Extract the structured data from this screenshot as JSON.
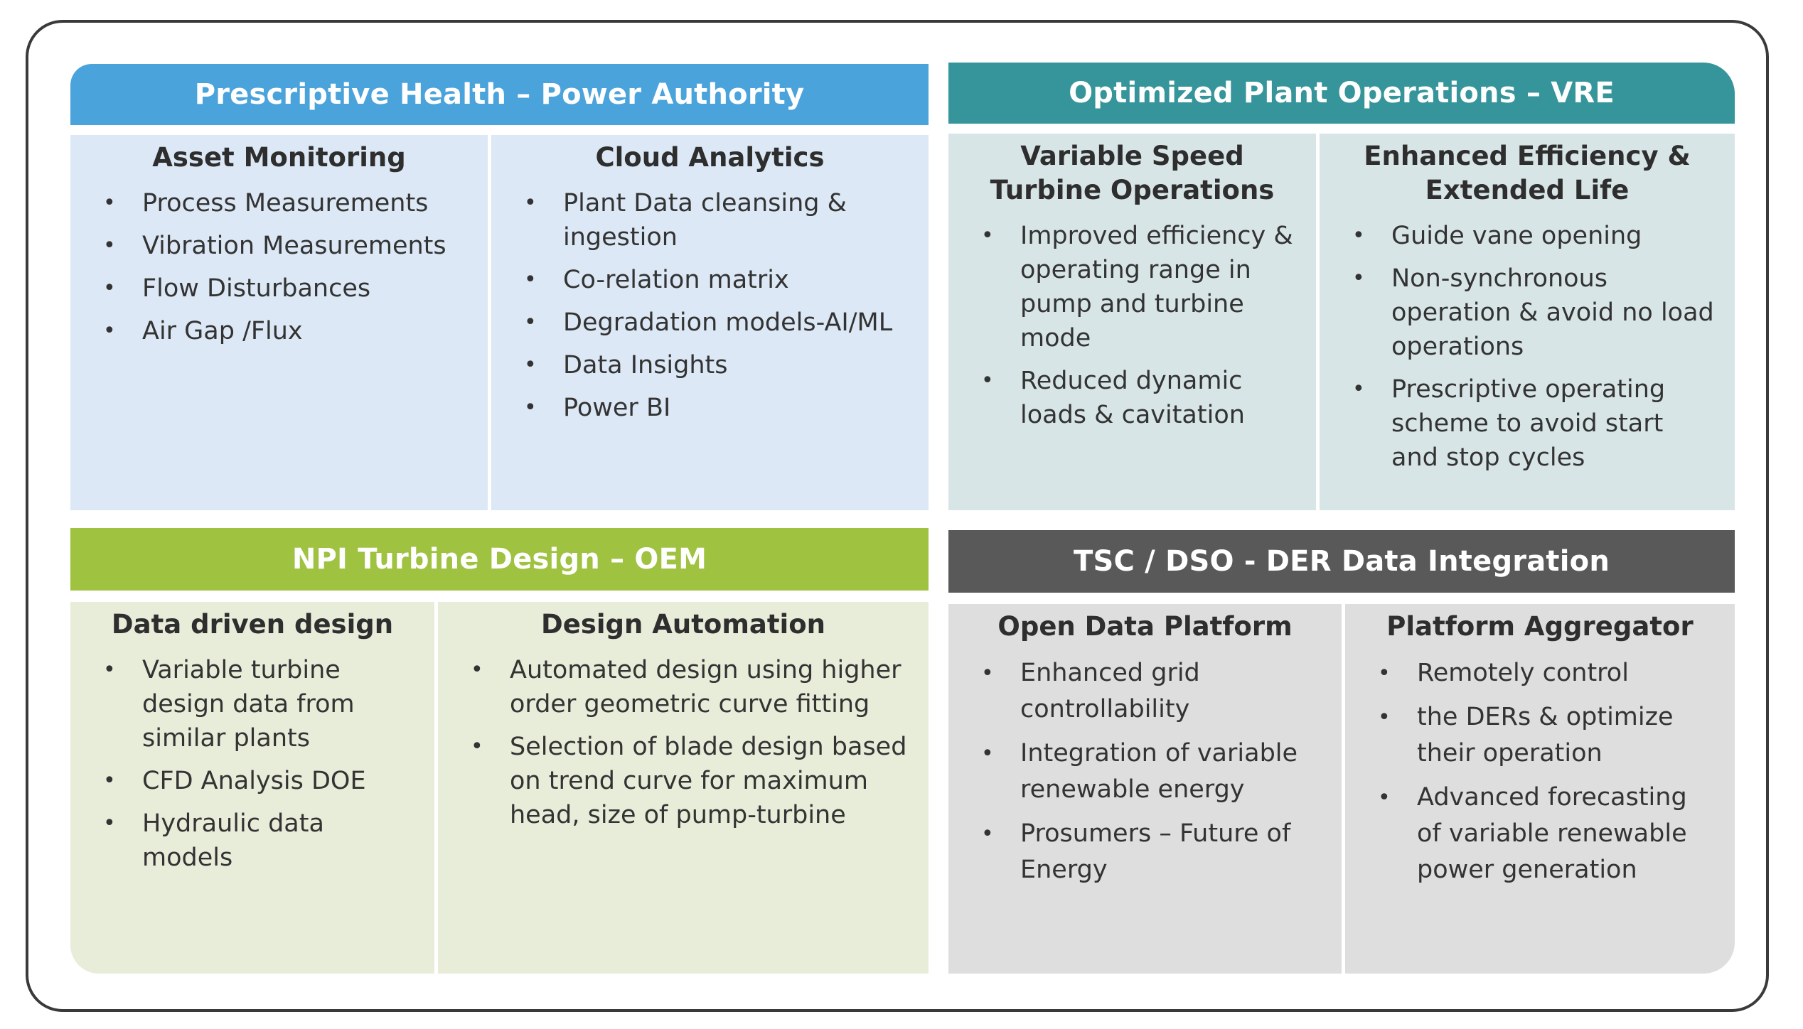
{
  "quadrants": [
    {
      "title": "Prescriptive Health – Power Authority",
      "color": "#4ba3db",
      "columns": [
        {
          "title": "Asset Monitoring",
          "items": [
            "Process Measurements",
            "Vibration Measurements",
            "Flow Disturbances",
            "Air Gap /Flux"
          ]
        },
        {
          "title": "Cloud Analytics",
          "items": [
            "Plant Data cleansing & ingestion",
            "Co-relation  matrix",
            "Degradation models-AI/ML",
            "Data Insights",
            "Power BI"
          ]
        }
      ]
    },
    {
      "title": "Optimized Plant Operations –  VRE",
      "color": "#36959a",
      "columns": [
        {
          "title": "Variable Speed Turbine Operations",
          "items": [
            "Improved efficiency & operating range  in pump and turbine mode",
            "Reduced dynamic loads & cavitation"
          ]
        },
        {
          "title": "Enhanced Efficiency & Extended Life",
          "items": [
            "Guide vane opening",
            "Non-synchronous operation & avoid no load operations",
            "Prescriptive operating scheme to avoid start and stop cycles"
          ]
        }
      ]
    },
    {
      "title": "NPI Turbine Design – OEM",
      "color": "#9fc241",
      "columns": [
        {
          "title": "Data driven design",
          "items": [
            "Variable turbine design data from similar plants",
            "CFD Analysis DOE",
            "Hydraulic data models"
          ]
        },
        {
          "title": "Design Automation",
          "items": [
            "Automated design using higher order geometric curve fitting",
            "Selection of blade design based on trend curve for maximum head, size of pump-turbine"
          ]
        }
      ]
    },
    {
      "title": "TSC / DSO - DER Data Integration",
      "color": "#595959",
      "columns": [
        {
          "title": "Open Data Platform",
          "items": [
            "Enhanced grid controllability",
            "Integration of variable renewable energy",
            "Prosumers – Future of Energy"
          ]
        },
        {
          "title": "Platform Aggregator",
          "items": [
            "Remotely control",
            "the DERs & optimize their operation",
            "Advanced forecasting of variable renewable power generation"
          ]
        }
      ]
    }
  ]
}
